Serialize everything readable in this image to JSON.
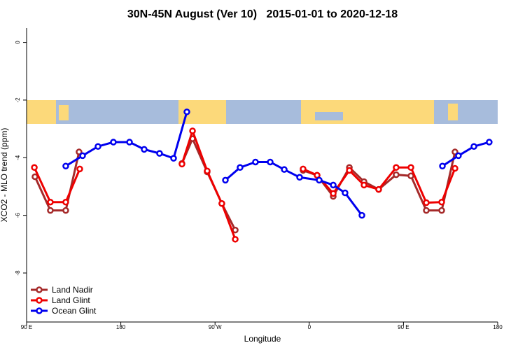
{
  "chart_data": {
    "type": "line",
    "title": "30N-45N August (Ver 10)   2015-01-01 to 2020-12-18",
    "x_label": "Longitude",
    "y_label": "XCO2 - MLO trend (ppm)",
    "xlim": [
      90,
      540
    ],
    "ylim": [
      -9.7,
      0.5
    ],
    "xticks": [
      {
        "value": 90,
        "label": "90 E"
      },
      180,
      {
        "value": 270,
        "label": "90 W"
      },
      {
        "value": 360,
        "label": "0"
      },
      {
        "value": 450,
        "label": "90 E"
      },
      {
        "value": 540,
        "label": "180"
      }
    ],
    "yticks": [
      0,
      -2,
      -4,
      -6,
      -8
    ],
    "legend": "bottom-left",
    "series": [
      {
        "name": "Land Nadir",
        "color": "#a52a2a",
        "x": [
          98,
          112.7,
          127.4,
          140.1,
          null,
          238.4,
          248.5,
          262.5,
          276.5,
          289.3,
          null,
          354.1,
          367.5,
          382.9,
          398.3,
          412.3,
          426.3,
          443,
          457.1,
          471.8,
          486.5,
          499.2
        ],
        "values": [
          -4.66,
          -5.83,
          -5.83,
          -3.8,
          null,
          -4.2,
          -3.34,
          -4.49,
          -5.59,
          -6.51,
          null,
          -4.44,
          -4.61,
          -5.34,
          -4.34,
          -4.83,
          -5.1,
          -4.59,
          -4.63,
          -5.83,
          -5.83,
          -3.8
        ]
      },
      {
        "name": "Land Glint",
        "color": "#ee0000",
        "x": [
          97.4,
          112.7,
          127.4,
          140.8,
          null,
          238.4,
          248.5,
          262.5,
          276.5,
          289.3,
          null,
          354.1,
          367.5,
          382.9,
          398.3,
          412.3,
          426.3,
          443,
          457.1,
          471.8,
          486.5,
          499.2
        ],
        "values": [
          -4.34,
          -5.54,
          -5.54,
          -4.39,
          null,
          -4.22,
          -3.07,
          -4.46,
          -5.59,
          -6.83,
          null,
          -4.39,
          -4.61,
          -5.24,
          -4.44,
          -4.95,
          -5.1,
          -4.34,
          -4.34,
          -5.56,
          -5.54,
          -4.37
        ]
      },
      {
        "name": "Ocean Glint",
        "color": "#0000ee",
        "x": [
          127.4,
          143.5,
          158.2,
          172.9,
          188.3,
          202.3,
          217,
          230.4,
          243.1,
          null,
          279.9,
          293.9,
          308.6,
          322.7,
          336.1,
          350.8,
          369.5,
          382.9,
          394.2,
          410.3,
          null,
          487.2,
          502.5,
          517.3,
          531.9
        ],
        "values": [
          -4.29,
          -3.93,
          -3.61,
          -3.46,
          -3.46,
          -3.71,
          -3.85,
          -4.02,
          -2.41,
          null,
          -4.78,
          -4.34,
          -4.15,
          -4.15,
          -4.41,
          -4.68,
          -4.78,
          -4.95,
          -5.22,
          -6.0,
          null,
          -4.29,
          -3.93,
          -3.61,
          -3.46
        ]
      }
    ]
  }
}
